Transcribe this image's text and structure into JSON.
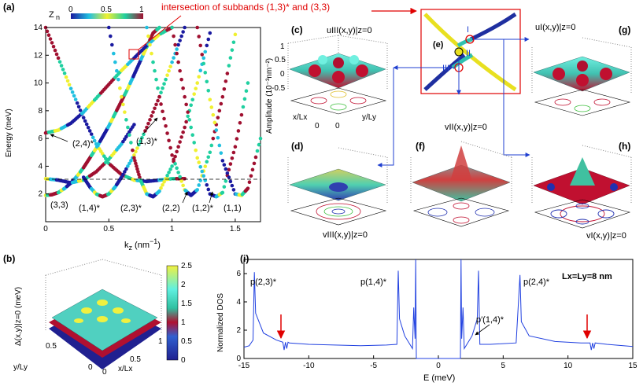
{
  "panels": {
    "a": {
      "letter": "(a)",
      "colorbar_label": "Z",
      "colorbar_sub": "n",
      "colorbar_ticks": [
        "0",
        "0.5",
        "1"
      ],
      "ylabel": "Energy (meV)",
      "xlabel": "k",
      "xlabel_sub": "z",
      "xlabel_unit": " (nm",
      "xlabel_exp": "−1",
      "xlabel_close": ")",
      "xticks": [
        "0",
        "0.5",
        "1",
        "1.5"
      ],
      "yticks": [
        "2",
        "4",
        "6",
        "8",
        "10",
        "12",
        "14"
      ],
      "subband_labels": [
        "(2,4)*",
        "(1,3)*",
        "(3,3)",
        "(1,4)*",
        "(2,3)*",
        "(2,2)",
        "(1,2)*",
        "(1,1)"
      ]
    },
    "b": {
      "letter": "(b)",
      "zlabel": "Δ(x,y)|z=0 (meV)",
      "colorbar_ticks": [
        "0",
        "0.5",
        "1",
        "1.5",
        "2",
        "2.5"
      ],
      "ylabel": "y/Ly",
      "xlabel": "x/Lx",
      "ticks_y": [
        "0.5",
        "0"
      ],
      "ticks_x": [
        "0",
        "0.5",
        "1"
      ]
    },
    "c": {
      "letter": "(c)",
      "title": "uIII(x,y)|z=0",
      "zlabel": "Amplitude (10⁻³nm⁻²)",
      "zticks": [
        "1",
        "0.5",
        "0",
        "-0.5"
      ],
      "xlabel": "x/Lx",
      "ylabel": "y/Ly",
      "ticks": [
        "0",
        "0"
      ]
    },
    "d": {
      "letter": "(d)",
      "title": "vIII(x,y)|z=0"
    },
    "e": {
      "letter": "(e)",
      "marks": [
        "I",
        "II",
        "III"
      ]
    },
    "f": {
      "letter": "(f)",
      "title": "vII(x,y)|z=0"
    },
    "g": {
      "letter": "(g)",
      "title": "uI(x,y)|z=0"
    },
    "h": {
      "letter": "(h)",
      "title": "vI(x,y)|z=0"
    },
    "i": {
      "letter": "(i)",
      "ylabel": "Normalized DOS",
      "xlabel": "E (meV)",
      "size_label": "Lx=Ly=8 nm",
      "xticks": [
        "-15",
        "-10",
        "-5",
        "0",
        "5",
        "10",
        "15"
      ],
      "yticks": [
        "0",
        "2",
        "4",
        "6"
      ],
      "peak_labels": [
        "p(2,3)*",
        "p(1,4)*",
        "p′(1,4)*",
        "p(2,4)*"
      ]
    }
  },
  "annotation": "intersection of subbands (1,3)* and (3,3)",
  "colors": {
    "red": "#e00000",
    "blue": "#1f3fd0",
    "dos_line": "#2040e0"
  },
  "chart_data": [
    {
      "type": "line",
      "panel": "a",
      "title": "",
      "xlabel": "kz (nm−1)",
      "ylabel": "Energy (meV)",
      "xlim": [
        0,
        1.7
      ],
      "ylim": [
        0,
        14
      ],
      "dashed_line_y": 3.1,
      "series": [
        {
          "name": "(3,3)",
          "x": [
            0,
            0.05,
            0.1,
            0.15,
            0.2,
            0.25,
            0.3,
            0.35,
            0.4,
            0.45,
            0.5,
            0.55,
            0.6,
            0.65,
            0.7,
            0.75,
            0.8,
            0.85,
            0.9
          ],
          "y": [
            1.9,
            1.95,
            2.1,
            2.4,
            2.8,
            3.3,
            3.9,
            4.6,
            5.3,
            6.1,
            6.9,
            7.8,
            8.7,
            9.6,
            10.6,
            11.6,
            12.6,
            13.6,
            14.0
          ]
        },
        {
          "name": "(1,3)*",
          "x": [
            0,
            0.1,
            0.2,
            0.3,
            0.4,
            0.5,
            0.6,
            0.7,
            0.8,
            0.9,
            1.0,
            1.1
          ],
          "y": [
            14.0,
            11.8,
            9.6,
            7.5,
            5.6,
            4.2,
            3.4,
            3.0,
            2.9,
            3.0,
            3.1,
            3.1
          ]
        },
        {
          "name": "(2,4)*",
          "x": [
            0,
            0.1,
            0.2,
            0.3,
            0.4,
            0.5,
            0.6,
            0.7,
            0.8,
            0.9,
            1.0
          ],
          "y": [
            6.4,
            6.6,
            7.1,
            7.9,
            8.9,
            9.9,
            10.9,
            11.8,
            12.7,
            13.5,
            14.0
          ]
        },
        {
          "name": "(3,3)-upper",
          "x": [
            0,
            0.1,
            0.2,
            0.3,
            0.4,
            0.5,
            0.6,
            0.7
          ],
          "y": [
            3.1,
            3.0,
            2.8,
            3.0,
            3.6,
            4.5,
            5.6,
            7.0
          ]
        },
        {
          "name": "(1,4)*",
          "x": [
            0.3,
            0.35,
            0.4,
            0.45,
            0.5,
            0.55,
            0.6,
            0.7,
            0.8,
            0.9,
            1.0,
            1.1
          ],
          "y": [
            3.2,
            2.5,
            2.0,
            1.8,
            2.0,
            2.5,
            3.2,
            4.8,
            6.8,
            9.0,
            11.5,
            14.0
          ]
        },
        {
          "name": "(2,3)*",
          "x": [
            0.5,
            0.6,
            0.7,
            0.75,
            0.8,
            0.85,
            0.9,
            1.0,
            1.1,
            1.2,
            1.3
          ],
          "y": [
            14.0,
            9.0,
            4.6,
            3.0,
            2.0,
            1.8,
            2.2,
            4.0,
            6.8,
            10.0,
            13.6
          ]
        },
        {
          "name": "(2,2)",
          "x": [
            0.8,
            0.9,
            1.0,
            1.1,
            1.15,
            1.2,
            1.3,
            1.4,
            1.5
          ],
          "y": [
            14.0,
            9.0,
            4.8,
            2.3,
            1.9,
            2.3,
            5.0,
            9.0,
            13.5
          ]
        },
        {
          "name": "(1,2)*",
          "x": [
            1.0,
            1.1,
            1.2,
            1.3,
            1.35,
            1.4,
            1.5,
            1.6
          ],
          "y": [
            14.0,
            9.0,
            4.6,
            2.0,
            1.8,
            2.1,
            5.4,
            10.0
          ]
        },
        {
          "name": "(1,1)",
          "x": [
            1.2,
            1.3,
            1.4,
            1.5,
            1.55,
            1.6,
            1.7
          ],
          "y": [
            14.0,
            8.8,
            4.4,
            2.0,
            1.9,
            2.4,
            6.0
          ]
        }
      ]
    },
    {
      "type": "line",
      "panel": "i",
      "title": "",
      "xlabel": "E (meV)",
      "ylabel": "Normalized DOS",
      "xlim": [
        -15,
        15
      ],
      "ylim": [
        0,
        7
      ],
      "series": [
        {
          "name": "DOS",
          "x": [
            -15,
            -14.6,
            -14.3,
            -14.2,
            -14.1,
            -13.5,
            -12.5,
            -12.0,
            -11.9,
            -11.8,
            -11.7,
            -11.6,
            -11.5,
            -10,
            -8,
            -6,
            -4,
            -3.2,
            -3.1,
            -3.0,
            -2.6,
            -2.2,
            -2.0,
            -1.9,
            -1.8,
            -1.75,
            -1.7,
            -1.65,
            -1.6,
            1.6,
            1.65,
            1.7,
            1.75,
            1.8,
            1.9,
            2.0,
            2.2,
            2.6,
            3.0,
            3.1,
            3.2,
            4,
            6.0,
            6.3,
            6.4,
            7,
            9,
            11,
            11.7,
            11.8,
            11.9,
            12.0,
            12.1,
            13,
            15
          ],
          "y": [
            0.8,
            0.9,
            1.3,
            6.1,
            3.2,
            1.8,
            1.3,
            1.15,
            0.6,
            1.15,
            0.7,
            1.15,
            1.1,
            1.0,
            0.95,
            0.9,
            0.95,
            1.0,
            6.2,
            2.8,
            1.6,
            1.0,
            0.7,
            3.6,
            1.4,
            7.0,
            0,
            0,
            0,
            0,
            0,
            0,
            7.0,
            1.4,
            3.6,
            0.7,
            1.0,
            1.6,
            2.8,
            6.2,
            1.0,
            1.0,
            1.1,
            5.9,
            2.6,
            1.6,
            1.2,
            1.1,
            1.1,
            0.6,
            1.1,
            0.7,
            1.1,
            1.0,
            0.85
          ]
        }
      ]
    }
  ]
}
